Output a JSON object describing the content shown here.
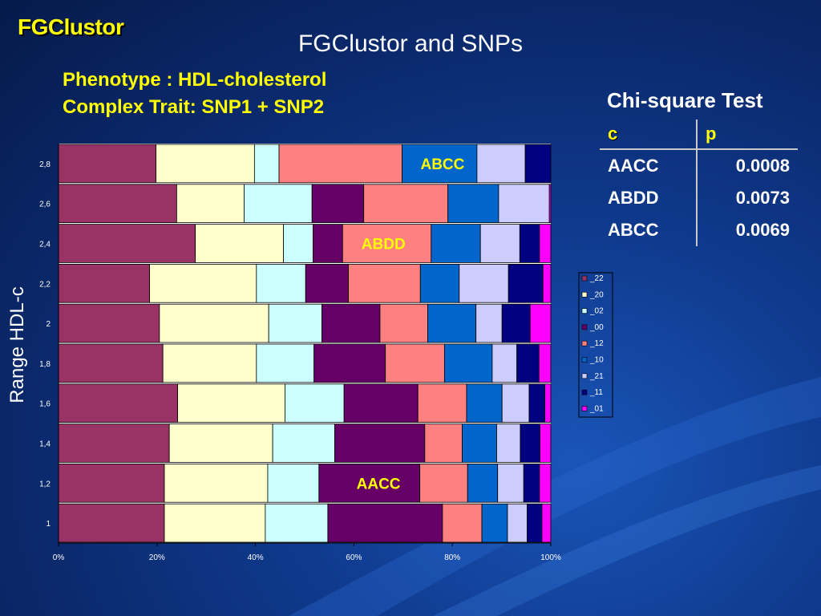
{
  "slide": {
    "brand": "FGClustor",
    "title": "FGClustor and SNPs",
    "subtitle_line1": "Phenotype : HDL-cholesterol",
    "subtitle_line2": "Complex Trait: SNP1 + SNP2"
  },
  "chi_square": {
    "title": "Chi-square Test",
    "header_c": "c",
    "header_p": "p",
    "rows": [
      {
        "c": "AACC",
        "p": "0.0008"
      },
      {
        "c": "ABDD",
        "p": "0.0073"
      },
      {
        "c": "ABCC",
        "p": "0.0069"
      }
    ]
  },
  "chart_data": {
    "type": "bar",
    "orientation": "horizontal",
    "stacked": "percent",
    "ylabel": "Range HDL-c",
    "xlabel": "",
    "categories": [
      "1",
      "1,2",
      "1,4",
      "1,6",
      "1,8",
      "2",
      "2,2",
      "2,4",
      "2,6",
      "2,8"
    ],
    "x_ticks": [
      "0%",
      "20%",
      "40%",
      "60%",
      "80%",
      "100%"
    ],
    "xlim": [
      0,
      100
    ],
    "legend_position": "right",
    "series": [
      {
        "name": "_22",
        "color": "#993366",
        "values": [
          21.5,
          21.5,
          22.5,
          24.2,
          21.2,
          20.5,
          18.5,
          27.8,
          24.0,
          19.8
        ]
      },
      {
        "name": "_20",
        "color": "#ffffcc",
        "values": [
          20.5,
          21.0,
          21.0,
          21.8,
          19.0,
          22.2,
          21.7,
          17.9,
          13.7,
          20.0
        ]
      },
      {
        "name": "_02",
        "color": "#ccffff",
        "values": [
          12.7,
          10.4,
          12.6,
          12.0,
          11.7,
          10.8,
          10.0,
          6.0,
          13.8,
          5.0
        ]
      },
      {
        "name": "_00",
        "color": "#660066",
        "values": [
          23.3,
          20.5,
          18.3,
          15.0,
          14.5,
          11.8,
          8.7,
          6.0,
          10.5,
          0
        ]
      },
      {
        "name": "_12",
        "color": "#ff8080",
        "values": [
          8.0,
          9.7,
          7.6,
          9.9,
          12.0,
          9.7,
          14.6,
          18.0,
          17.1,
          25.0
        ]
      },
      {
        "name": "_10",
        "color": "#0066cc",
        "values": [
          5.2,
          6.1,
          7.0,
          7.2,
          9.7,
          9.8,
          7.9,
          10.0,
          10.3,
          15.2
        ]
      },
      {
        "name": "_21",
        "color": "#ccccff",
        "values": [
          4.0,
          5.3,
          4.8,
          5.5,
          5.0,
          5.3,
          10.0,
          8.0,
          10.3,
          9.8
        ]
      },
      {
        "name": "_11",
        "color": "#000080",
        "values": [
          3.0,
          3.2,
          4.0,
          3.2,
          4.5,
          5.7,
          7.0,
          4.0,
          0,
          5.2
        ]
      },
      {
        "name": "_01",
        "color": "#ff00ff",
        "values": [
          1.8,
          2.3,
          2.2,
          1.2,
          2.4,
          4.2,
          1.6,
          2.3,
          0.3,
          0
        ]
      }
    ],
    "annotations": [
      {
        "text": "ABCC",
        "category": "2,8",
        "x": 78
      },
      {
        "text": "ABDD",
        "category": "2,4",
        "x": 66
      },
      {
        "text": "AACC",
        "category": "1,2",
        "x": 65
      }
    ]
  },
  "colors": {
    "background": "#0b2a6e",
    "title_yellow": "#ffff00",
    "annotation_text": "#ffff00",
    "chart_bg": "#ffffff"
  }
}
